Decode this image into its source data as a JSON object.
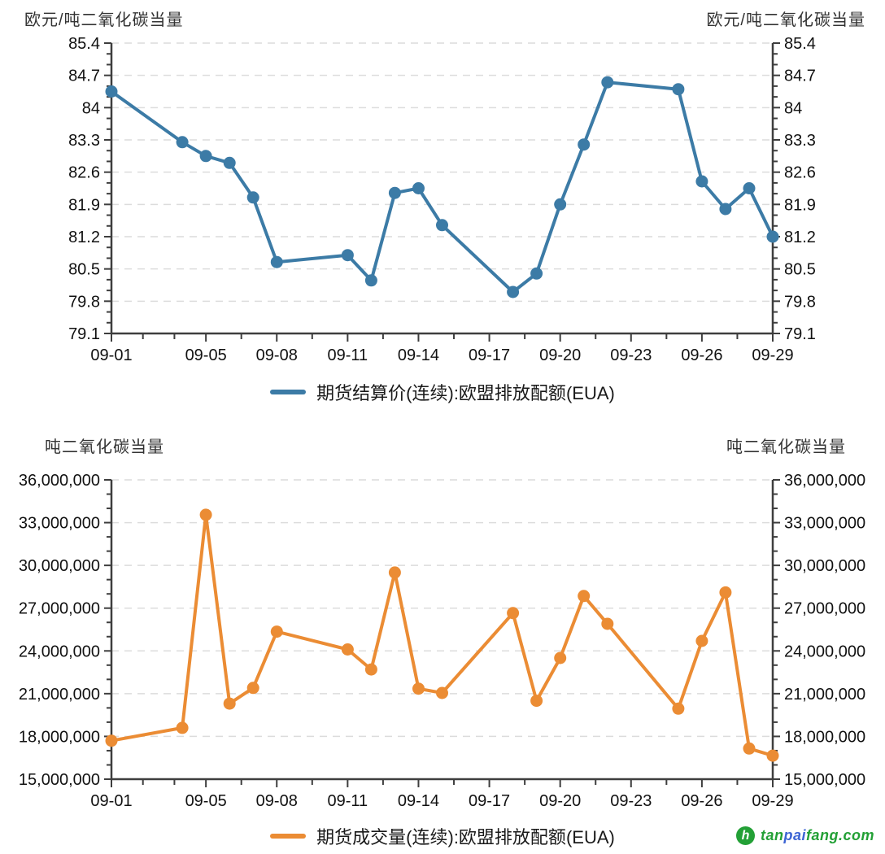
{
  "chart_data": [
    {
      "type": "line",
      "name": "EUA futures settlement price (continuous contract)",
      "title_left": "欧元/吨二氧化碳当量",
      "title_right": "欧元/吨二氧化碳当量",
      "legend": "期货结算价(连续):欧盟排放配额(EUA)",
      "color": "#3C7BA6",
      "x": [
        "09-01",
        "09-04",
        "09-05",
        "09-06",
        "09-07",
        "09-08",
        "09-11",
        "09-12",
        "09-13",
        "09-14",
        "09-15",
        "09-18",
        "09-19",
        "09-20",
        "09-21",
        "09-22",
        "09-25",
        "09-26",
        "09-27",
        "09-28",
        "09-29"
      ],
      "values": [
        84.35,
        83.25,
        82.95,
        82.8,
        82.05,
        80.65,
        80.8,
        80.25,
        82.15,
        82.25,
        81.45,
        80.0,
        80.4,
        81.9,
        83.2,
        84.55,
        84.4,
        82.4,
        81.8,
        82.25,
        81.2
      ],
      "ylim": [
        79.1,
        85.4
      ],
      "ytick_labels": [
        "85.4",
        "84.7",
        "84",
        "83.3",
        "82.6",
        "81.9",
        "81.2",
        "80.5",
        "79.8",
        "79.1"
      ],
      "xtick_labels": [
        "09-01",
        "09-05",
        "09-08",
        "09-11",
        "09-14",
        "09-17",
        "09-20",
        "09-23",
        "09-26",
        "09-29"
      ],
      "grid": "horizontal dashed",
      "legend_position": "bottom center"
    },
    {
      "type": "line",
      "name": "EUA futures trading volume (continuous contract)",
      "title_left": "吨二氧化碳当量",
      "title_right": "吨二氧化碳当量",
      "legend": "期货成交量(连续):欧盟排放配额(EUA)",
      "color": "#EB8C34",
      "x": [
        "09-01",
        "09-04",
        "09-05",
        "09-06",
        "09-07",
        "09-08",
        "09-11",
        "09-12",
        "09-13",
        "09-14",
        "09-15",
        "09-18",
        "09-19",
        "09-20",
        "09-21",
        "09-22",
        "09-25",
        "09-26",
        "09-27",
        "09-28",
        "09-29"
      ],
      "values": [
        17700000,
        18600000,
        33550000,
        20300000,
        21400000,
        25350000,
        24100000,
        22700000,
        29500000,
        21350000,
        21050000,
        26650000,
        20500000,
        23500000,
        27850000,
        25900000,
        19950000,
        24700000,
        28100000,
        17150000,
        16650000
      ],
      "ylim": [
        15000000,
        36000000
      ],
      "ytick_labels": [
        "36,000,000",
        "33,000,000",
        "30,000,000",
        "27,000,000",
        "24,000,000",
        "21,000,000",
        "18,000,000",
        "15,000,000"
      ],
      "xtick_labels": [
        "09-01",
        "09-05",
        "09-08",
        "09-11",
        "09-14",
        "09-17",
        "09-20",
        "09-23",
        "09-26",
        "09-29"
      ],
      "grid": "horizontal dashed",
      "legend_position": "bottom center"
    }
  ],
  "watermark": {
    "logo_glyph": "h",
    "logo_color": "#23A036",
    "segments": [
      {
        "text": "tan",
        "color": "#23A036"
      },
      {
        "text": "pai",
        "color": "#3D65D4"
      },
      {
        "text": "fang.com",
        "color": "#23A036"
      }
    ]
  }
}
